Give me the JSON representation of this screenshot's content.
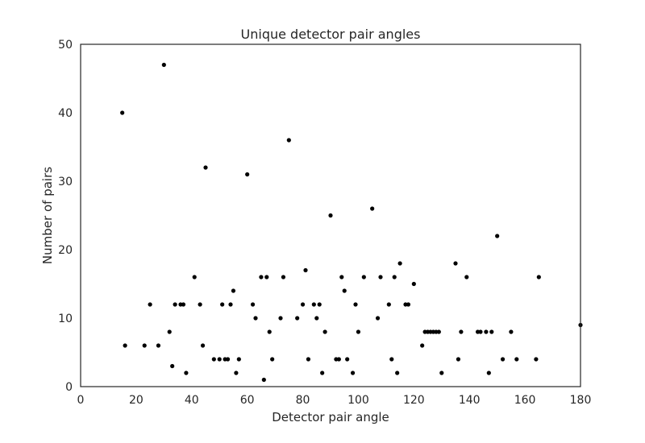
{
  "chart_data": {
    "type": "scatter",
    "title": "Unique detector pair angles",
    "xlabel": "Detector pair angle",
    "ylabel": "Number of pairs",
    "xlim": [
      0,
      180
    ],
    "ylim": [
      0,
      50
    ],
    "xticks": [
      0,
      20,
      40,
      60,
      80,
      100,
      120,
      140,
      160,
      180
    ],
    "yticks": [
      0,
      10,
      20,
      30,
      40,
      50
    ],
    "grid": false,
    "colors": {
      "marker": "#000000",
      "frame": "#262626"
    },
    "series": [
      {
        "points": [
          [
            15,
            40
          ],
          [
            16,
            6
          ],
          [
            23,
            6
          ],
          [
            25,
            12
          ],
          [
            28,
            6
          ],
          [
            30,
            47
          ],
          [
            32,
            8
          ],
          [
            33,
            3
          ],
          [
            34,
            12
          ],
          [
            36,
            12
          ],
          [
            37,
            12
          ],
          [
            38,
            2
          ],
          [
            41,
            16
          ],
          [
            43,
            12
          ],
          [
            44,
            6
          ],
          [
            45,
            32
          ],
          [
            48,
            4
          ],
          [
            50,
            4
          ],
          [
            51,
            12
          ],
          [
            52,
            4
          ],
          [
            53,
            4
          ],
          [
            54,
            12
          ],
          [
            55,
            14
          ],
          [
            56,
            2
          ],
          [
            57,
            4
          ],
          [
            60,
            31
          ],
          [
            62,
            12
          ],
          [
            63,
            10
          ],
          [
            65,
            16
          ],
          [
            66,
            1
          ],
          [
            67,
            16
          ],
          [
            68,
            8
          ],
          [
            69,
            4
          ],
          [
            72,
            10
          ],
          [
            73,
            16
          ],
          [
            75,
            36
          ],
          [
            78,
            10
          ],
          [
            80,
            12
          ],
          [
            81,
            17
          ],
          [
            82,
            4
          ],
          [
            84,
            12
          ],
          [
            85,
            10
          ],
          [
            86,
            12
          ],
          [
            87,
            2
          ],
          [
            88,
            8
          ],
          [
            90,
            25
          ],
          [
            92,
            4
          ],
          [
            93,
            4
          ],
          [
            94,
            16
          ],
          [
            95,
            14
          ],
          [
            96,
            4
          ],
          [
            98,
            2
          ],
          [
            99,
            12
          ],
          [
            100,
            8
          ],
          [
            102,
            16
          ],
          [
            105,
            26
          ],
          [
            107,
            10
          ],
          [
            108,
            16
          ],
          [
            111,
            12
          ],
          [
            112,
            4
          ],
          [
            113,
            16
          ],
          [
            114,
            2
          ],
          [
            115,
            18
          ],
          [
            117,
            12
          ],
          [
            118,
            12
          ],
          [
            120,
            15
          ],
          [
            123,
            6
          ],
          [
            124,
            8
          ],
          [
            125,
            8
          ],
          [
            126,
            8
          ],
          [
            127,
            8
          ],
          [
            128,
            8
          ],
          [
            129,
            8
          ],
          [
            130,
            2
          ],
          [
            135,
            18
          ],
          [
            136,
            4
          ],
          [
            137,
            8
          ],
          [
            139,
            16
          ],
          [
            143,
            8
          ],
          [
            144,
            8
          ],
          [
            146,
            8
          ],
          [
            147,
            2
          ],
          [
            148,
            8
          ],
          [
            150,
            22
          ],
          [
            152,
            4
          ],
          [
            155,
            8
          ],
          [
            157,
            4
          ],
          [
            164,
            4
          ],
          [
            165,
            16
          ],
          [
            180,
            9
          ]
        ]
      }
    ]
  }
}
